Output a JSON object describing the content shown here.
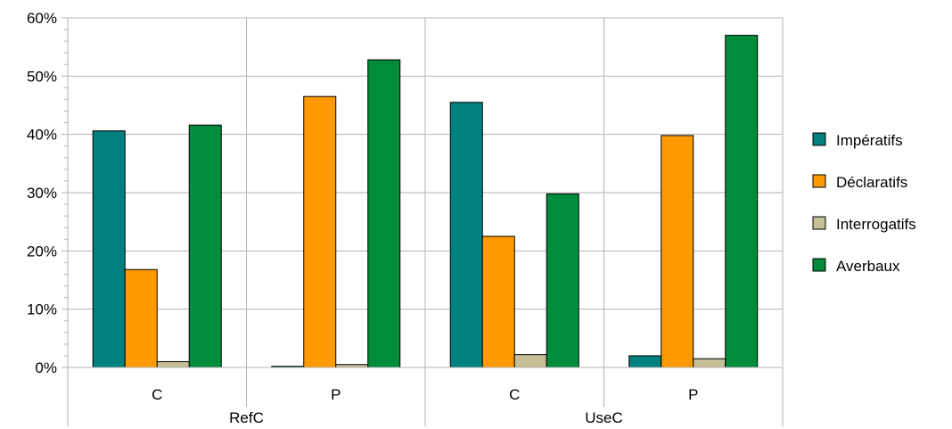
{
  "chart_data": {
    "type": "bar",
    "title": "",
    "xlabel": "",
    "ylabel": "",
    "ylim": [
      0,
      60
    ],
    "y_ticks": [
      0,
      10,
      20,
      30,
      40,
      50,
      60
    ],
    "y_tick_labels": [
      "0%",
      "10%",
      "20%",
      "30%",
      "40%",
      "50%",
      "60%"
    ],
    "groups": [
      {
        "label": "RefC",
        "categories": [
          "C",
          "P"
        ]
      },
      {
        "label": "UseC",
        "categories": [
          "C",
          "P"
        ]
      }
    ],
    "categories": [
      "C",
      "P",
      "C",
      "P"
    ],
    "series": [
      {
        "name": "Impératifs",
        "color": "#007f7f",
        "values": [
          40.6,
          0.2,
          45.5,
          2.0
        ]
      },
      {
        "name": "Déclaratifs",
        "color": "#ff9900",
        "values": [
          16.8,
          46.5,
          22.5,
          39.8
        ]
      },
      {
        "name": "Interrogatifs",
        "color": "#c5be97",
        "values": [
          1.0,
          0.5,
          2.2,
          1.5
        ]
      },
      {
        "name": "Averbaux",
        "color": "#008c3a",
        "values": [
          41.6,
          52.8,
          29.8,
          57.0
        ]
      }
    ],
    "grid": true,
    "legend_position": "right"
  }
}
